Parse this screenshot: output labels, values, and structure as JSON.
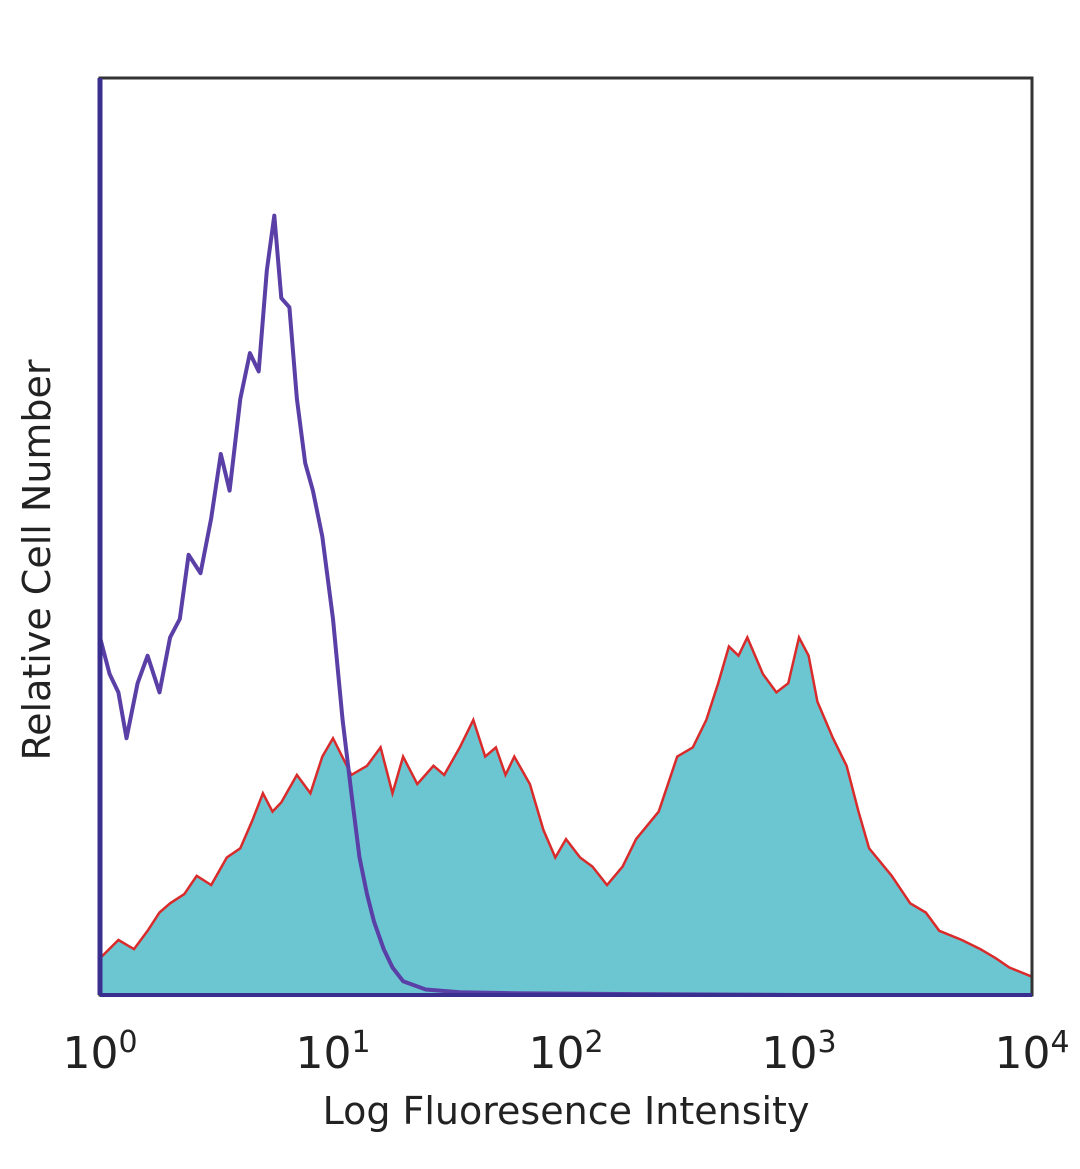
{
  "chart_data": {
    "type": "area",
    "title": "",
    "xlabel": "Log Fluoresence Intensity",
    "ylabel": "Relative Cell Number",
    "x_scale": "log",
    "xlim": [
      1,
      10000
    ],
    "ylim": [
      0,
      1
    ],
    "grid": false,
    "legend": "none",
    "x_ticks": [
      {
        "base": "10",
        "exp": "0",
        "value": 1
      },
      {
        "base": "10",
        "exp": "1",
        "value": 10
      },
      {
        "base": "10",
        "exp": "2",
        "value": 100
      },
      {
        "base": "10",
        "exp": "3",
        "value": 1000
      },
      {
        "base": "10",
        "exp": "4",
        "value": 10000
      }
    ],
    "series": [
      {
        "style": "outline",
        "color": "#5a3fa6",
        "x": [
          1.0,
          1.1,
          1.2,
          1.3,
          1.45,
          1.6,
          1.8,
          2.0,
          2.2,
          2.4,
          2.7,
          3.0,
          3.3,
          3.6,
          4.0,
          4.4,
          4.8,
          5.2,
          5.6,
          6.0,
          6.5,
          7.0,
          7.6,
          8.2,
          9.0,
          10.0,
          11.0,
          12.0,
          13.0,
          14.0,
          15.0,
          16.5,
          18.0,
          20.0,
          25.0,
          35.0,
          60.0,
          200.0,
          1000.0,
          10000.0
        ],
        "y": [
          0.39,
          0.35,
          0.33,
          0.28,
          0.34,
          0.37,
          0.33,
          0.39,
          0.41,
          0.48,
          0.46,
          0.52,
          0.59,
          0.55,
          0.65,
          0.7,
          0.68,
          0.79,
          0.85,
          0.76,
          0.75,
          0.65,
          0.58,
          0.55,
          0.5,
          0.41,
          0.3,
          0.22,
          0.15,
          0.11,
          0.08,
          0.05,
          0.03,
          0.015,
          0.006,
          0.003,
          0.002,
          0.001,
          0.0,
          0.0
        ]
      },
      {
        "style": "filled",
        "color": "#6cc6d2",
        "edge_color": "#d92b2b",
        "x": [
          1.0,
          1.2,
          1.4,
          1.6,
          1.8,
          2.0,
          2.3,
          2.6,
          3.0,
          3.5,
          4.0,
          4.5,
          5.0,
          5.5,
          6.0,
          7.0,
          8.0,
          9.0,
          10.0,
          12.0,
          14.0,
          16.0,
          18.0,
          20.0,
          23.0,
          27.0,
          30.0,
          35.0,
          40.0,
          45.0,
          50.0,
          55.0,
          60.0,
          70.0,
          80.0,
          90.0,
          100.0,
          115.0,
          130.0,
          150.0,
          175.0,
          200.0,
          250.0,
          300.0,
          350.0,
          400.0,
          450.0,
          500.0,
          550.0,
          600.0,
          700.0,
          800.0,
          900.0,
          1000.0,
          1100.0,
          1200.0,
          1400.0,
          1600.0,
          1800.0,
          2000.0,
          2500.0,
          3000.0,
          3500.0,
          4000.0,
          5000.0,
          6000.0,
          7000.0,
          8000.0,
          10000.0
        ],
        "y": [
          0.04,
          0.06,
          0.05,
          0.07,
          0.09,
          0.1,
          0.11,
          0.13,
          0.12,
          0.15,
          0.16,
          0.19,
          0.22,
          0.2,
          0.21,
          0.24,
          0.22,
          0.26,
          0.28,
          0.24,
          0.25,
          0.27,
          0.22,
          0.26,
          0.23,
          0.25,
          0.24,
          0.27,
          0.3,
          0.26,
          0.27,
          0.24,
          0.26,
          0.23,
          0.18,
          0.15,
          0.17,
          0.15,
          0.14,
          0.12,
          0.14,
          0.17,
          0.2,
          0.26,
          0.27,
          0.3,
          0.34,
          0.38,
          0.37,
          0.39,
          0.35,
          0.33,
          0.34,
          0.39,
          0.37,
          0.32,
          0.28,
          0.25,
          0.2,
          0.16,
          0.13,
          0.1,
          0.09,
          0.07,
          0.06,
          0.05,
          0.04,
          0.03,
          0.02
        ]
      }
    ]
  }
}
